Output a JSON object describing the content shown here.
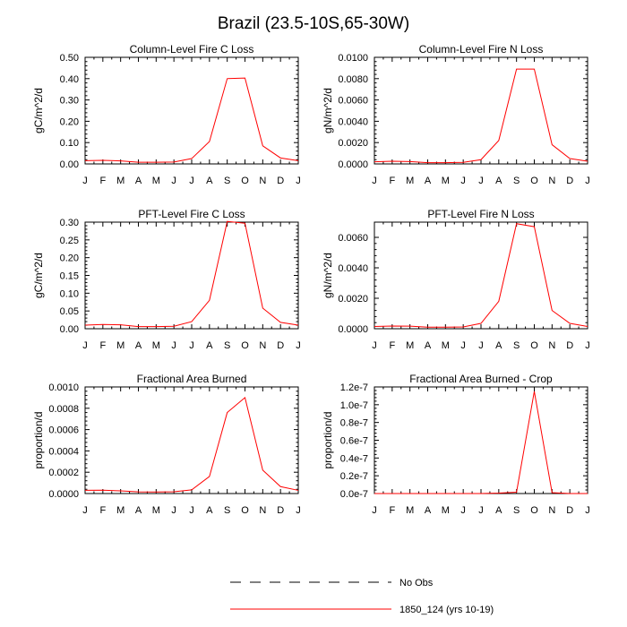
{
  "figure": {
    "title": "Brazil (23.5-10S,65-30W)"
  },
  "legend": {
    "entries": [
      {
        "label": "No Obs",
        "style": "dashed",
        "color": "#000000"
      },
      {
        "label": "1850_124 (yrs 10-19)",
        "style": "solid",
        "color": "#ff0000"
      }
    ]
  },
  "chart_data": [
    {
      "type": "line",
      "title": "Column-Level Fire C Loss",
      "ylabel": "gC/m^2/d",
      "categories": [
        "J",
        "F",
        "M",
        "A",
        "M",
        "J",
        "J",
        "A",
        "S",
        "O",
        "N",
        "D",
        "J"
      ],
      "ylim": [
        0,
        0.5
      ],
      "yticks": [
        0,
        0.1,
        0.2,
        0.3,
        0.4,
        0.5
      ],
      "ytick_labels": [
        "0.00",
        "0.10",
        "0.20",
        "0.30",
        "0.40",
        "0.50"
      ],
      "series": [
        {
          "name": "1850_124 (yrs 10-19)",
          "color": "#ff0000",
          "values": [
            0.015,
            0.017,
            0.014,
            0.008,
            0.008,
            0.009,
            0.025,
            0.105,
            0.4,
            0.403,
            0.085,
            0.028,
            0.015
          ]
        }
      ]
    },
    {
      "type": "line",
      "title": "Column-Level Fire N Loss",
      "ylabel": "gN/m^2/d",
      "categories": [
        "J",
        "F",
        "M",
        "A",
        "M",
        "J",
        "J",
        "A",
        "S",
        "O",
        "N",
        "D",
        "J"
      ],
      "ylim": [
        0,
        0.01
      ],
      "yticks": [
        0,
        0.002,
        0.004,
        0.006,
        0.008,
        0.01
      ],
      "ytick_labels": [
        "0.0000",
        "0.0020",
        "0.0040",
        "0.0060",
        "0.0080",
        "0.0100"
      ],
      "series": [
        {
          "name": "1850_124 (yrs 10-19)",
          "color": "#ff0000",
          "values": [
            0.0002,
            0.00025,
            0.00022,
            0.00012,
            0.00012,
            0.00015,
            0.0004,
            0.0022,
            0.0089,
            0.0089,
            0.0018,
            0.0005,
            0.00025
          ]
        }
      ]
    },
    {
      "type": "line",
      "title": "PFT-Level Fire C Loss",
      "ylabel": "gC/m^2/d",
      "categories": [
        "J",
        "F",
        "M",
        "A",
        "M",
        "J",
        "J",
        "A",
        "S",
        "O",
        "N",
        "D",
        "J"
      ],
      "ylim": [
        0,
        0.3
      ],
      "yticks": [
        0,
        0.05,
        0.1,
        0.15,
        0.2,
        0.25,
        0.3
      ],
      "ytick_labels": [
        "0.00",
        "0.05",
        "0.10",
        "0.15",
        "0.20",
        "0.25",
        "0.30"
      ],
      "series": [
        {
          "name": "1850_124 (yrs 10-19)",
          "color": "#ff0000",
          "values": [
            0.01,
            0.012,
            0.011,
            0.006,
            0.006,
            0.007,
            0.02,
            0.08,
            0.302,
            0.297,
            0.058,
            0.018,
            0.01
          ]
        }
      ]
    },
    {
      "type": "line",
      "title": "PFT-Level Fire N Loss",
      "ylabel": "gN/m^2/d",
      "categories": [
        "J",
        "F",
        "M",
        "A",
        "M",
        "J",
        "J",
        "A",
        "S",
        "O",
        "N",
        "D",
        "J"
      ],
      "ylim": [
        0,
        0.007
      ],
      "yticks": [
        0,
        0.002,
        0.004,
        0.006
      ],
      "ytick_labels": [
        "0.0000",
        "0.0020",
        "0.0040",
        "0.0060"
      ],
      "series": [
        {
          "name": "1850_124 (yrs 10-19)",
          "color": "#ff0000",
          "values": [
            0.00015,
            0.00018,
            0.00017,
            0.0001,
            0.0001,
            0.00012,
            0.00035,
            0.0018,
            0.0069,
            0.0067,
            0.0012,
            0.00035,
            0.00015
          ]
        }
      ]
    },
    {
      "type": "line",
      "title": "Fractional Area Burned",
      "ylabel": "proportion/d",
      "categories": [
        "J",
        "F",
        "M",
        "A",
        "M",
        "J",
        "J",
        "A",
        "S",
        "O",
        "N",
        "D",
        "J"
      ],
      "ylim": [
        0,
        0.001
      ],
      "yticks": [
        0,
        0.0002,
        0.0004,
        0.0006,
        0.0008,
        0.001
      ],
      "ytick_labels": [
        "0.0000",
        "0.0002",
        "0.0004",
        "0.0006",
        "0.0008",
        "0.0010"
      ],
      "series": [
        {
          "name": "1850_124 (yrs 10-19)",
          "color": "#ff0000",
          "values": [
            3e-05,
            3.2e-05,
            2.5e-05,
            1.6e-05,
            1.5e-05,
            1.7e-05,
            3.5e-05,
            0.00016,
            0.00076,
            0.0009,
            0.00022,
            6.5e-05,
            3e-05
          ]
        }
      ]
    },
    {
      "type": "line",
      "title": "Fractional Area Burned - Crop",
      "ylabel": "proportion/d",
      "categories": [
        "J",
        "F",
        "M",
        "A",
        "M",
        "J",
        "J",
        "A",
        "S",
        "O",
        "N",
        "D",
        "J"
      ],
      "ylim": [
        0,
        1.2e-07
      ],
      "yticks": [
        0,
        2e-08,
        4e-08,
        6e-08,
        8e-08,
        1e-07,
        1.2e-07
      ],
      "ytick_labels": [
        "0.0e-7",
        "0.2e-7",
        "0.4e-7",
        "0.6e-7",
        "0.8e-7",
        "1.0e-7",
        "1.2e-7"
      ],
      "series": [
        {
          "name": "1850_124 (yrs 10-19)",
          "color": "#ff0000",
          "values": [
            0,
            0,
            0,
            0,
            0,
            0,
            0,
            5e-10,
            1.5e-09,
            1.15e-07,
            1e-09,
            0,
            0
          ]
        }
      ]
    }
  ]
}
